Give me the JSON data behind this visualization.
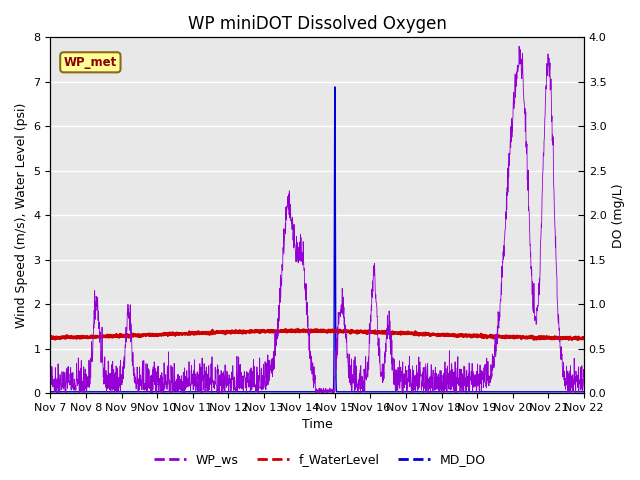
{
  "title": "WP miniDOT Dissolved Oxygen",
  "ylabel_left": "Wind Speed (m/s), Water Level (psi)",
  "ylabel_right": "DO (mg/L)",
  "xlabel": "Time",
  "ylim_left": [
    0.0,
    8.0
  ],
  "ylim_right": [
    0.0,
    4.0
  ],
  "yticks_left": [
    0.0,
    1.0,
    2.0,
    3.0,
    4.0,
    5.0,
    6.0,
    7.0,
    8.0
  ],
  "yticks_right": [
    0.0,
    0.5,
    1.0,
    1.5,
    2.0,
    2.5,
    3.0,
    3.5,
    4.0
  ],
  "xtick_labels": [
    "Nov 7",
    "Nov 8",
    "Nov 9",
    "Nov 10",
    "Nov 11",
    "Nov 12",
    "Nov 13",
    "Nov 14",
    "Nov 15",
    "Nov 16",
    "Nov 17",
    "Nov 18",
    "Nov 19",
    "Nov 20",
    "Nov 21",
    "Nov 22"
  ],
  "background_color": "#e8e8e8",
  "line_wp_ws_color": "#9400d3",
  "line_water_level_color": "#cc0000",
  "line_md_do_color": "#0000dd",
  "annotation_text": "WP_met",
  "annotation_bg": "#ffff99",
  "annotation_border": "#8b6914",
  "annotation_text_color": "#8b0000",
  "legend_labels": [
    "WP_ws",
    "f_WaterLevel",
    "MD_DO"
  ],
  "title_fontsize": 12,
  "axis_fontsize": 9,
  "tick_fontsize": 8,
  "n_days": 15,
  "n_pts": 2160
}
